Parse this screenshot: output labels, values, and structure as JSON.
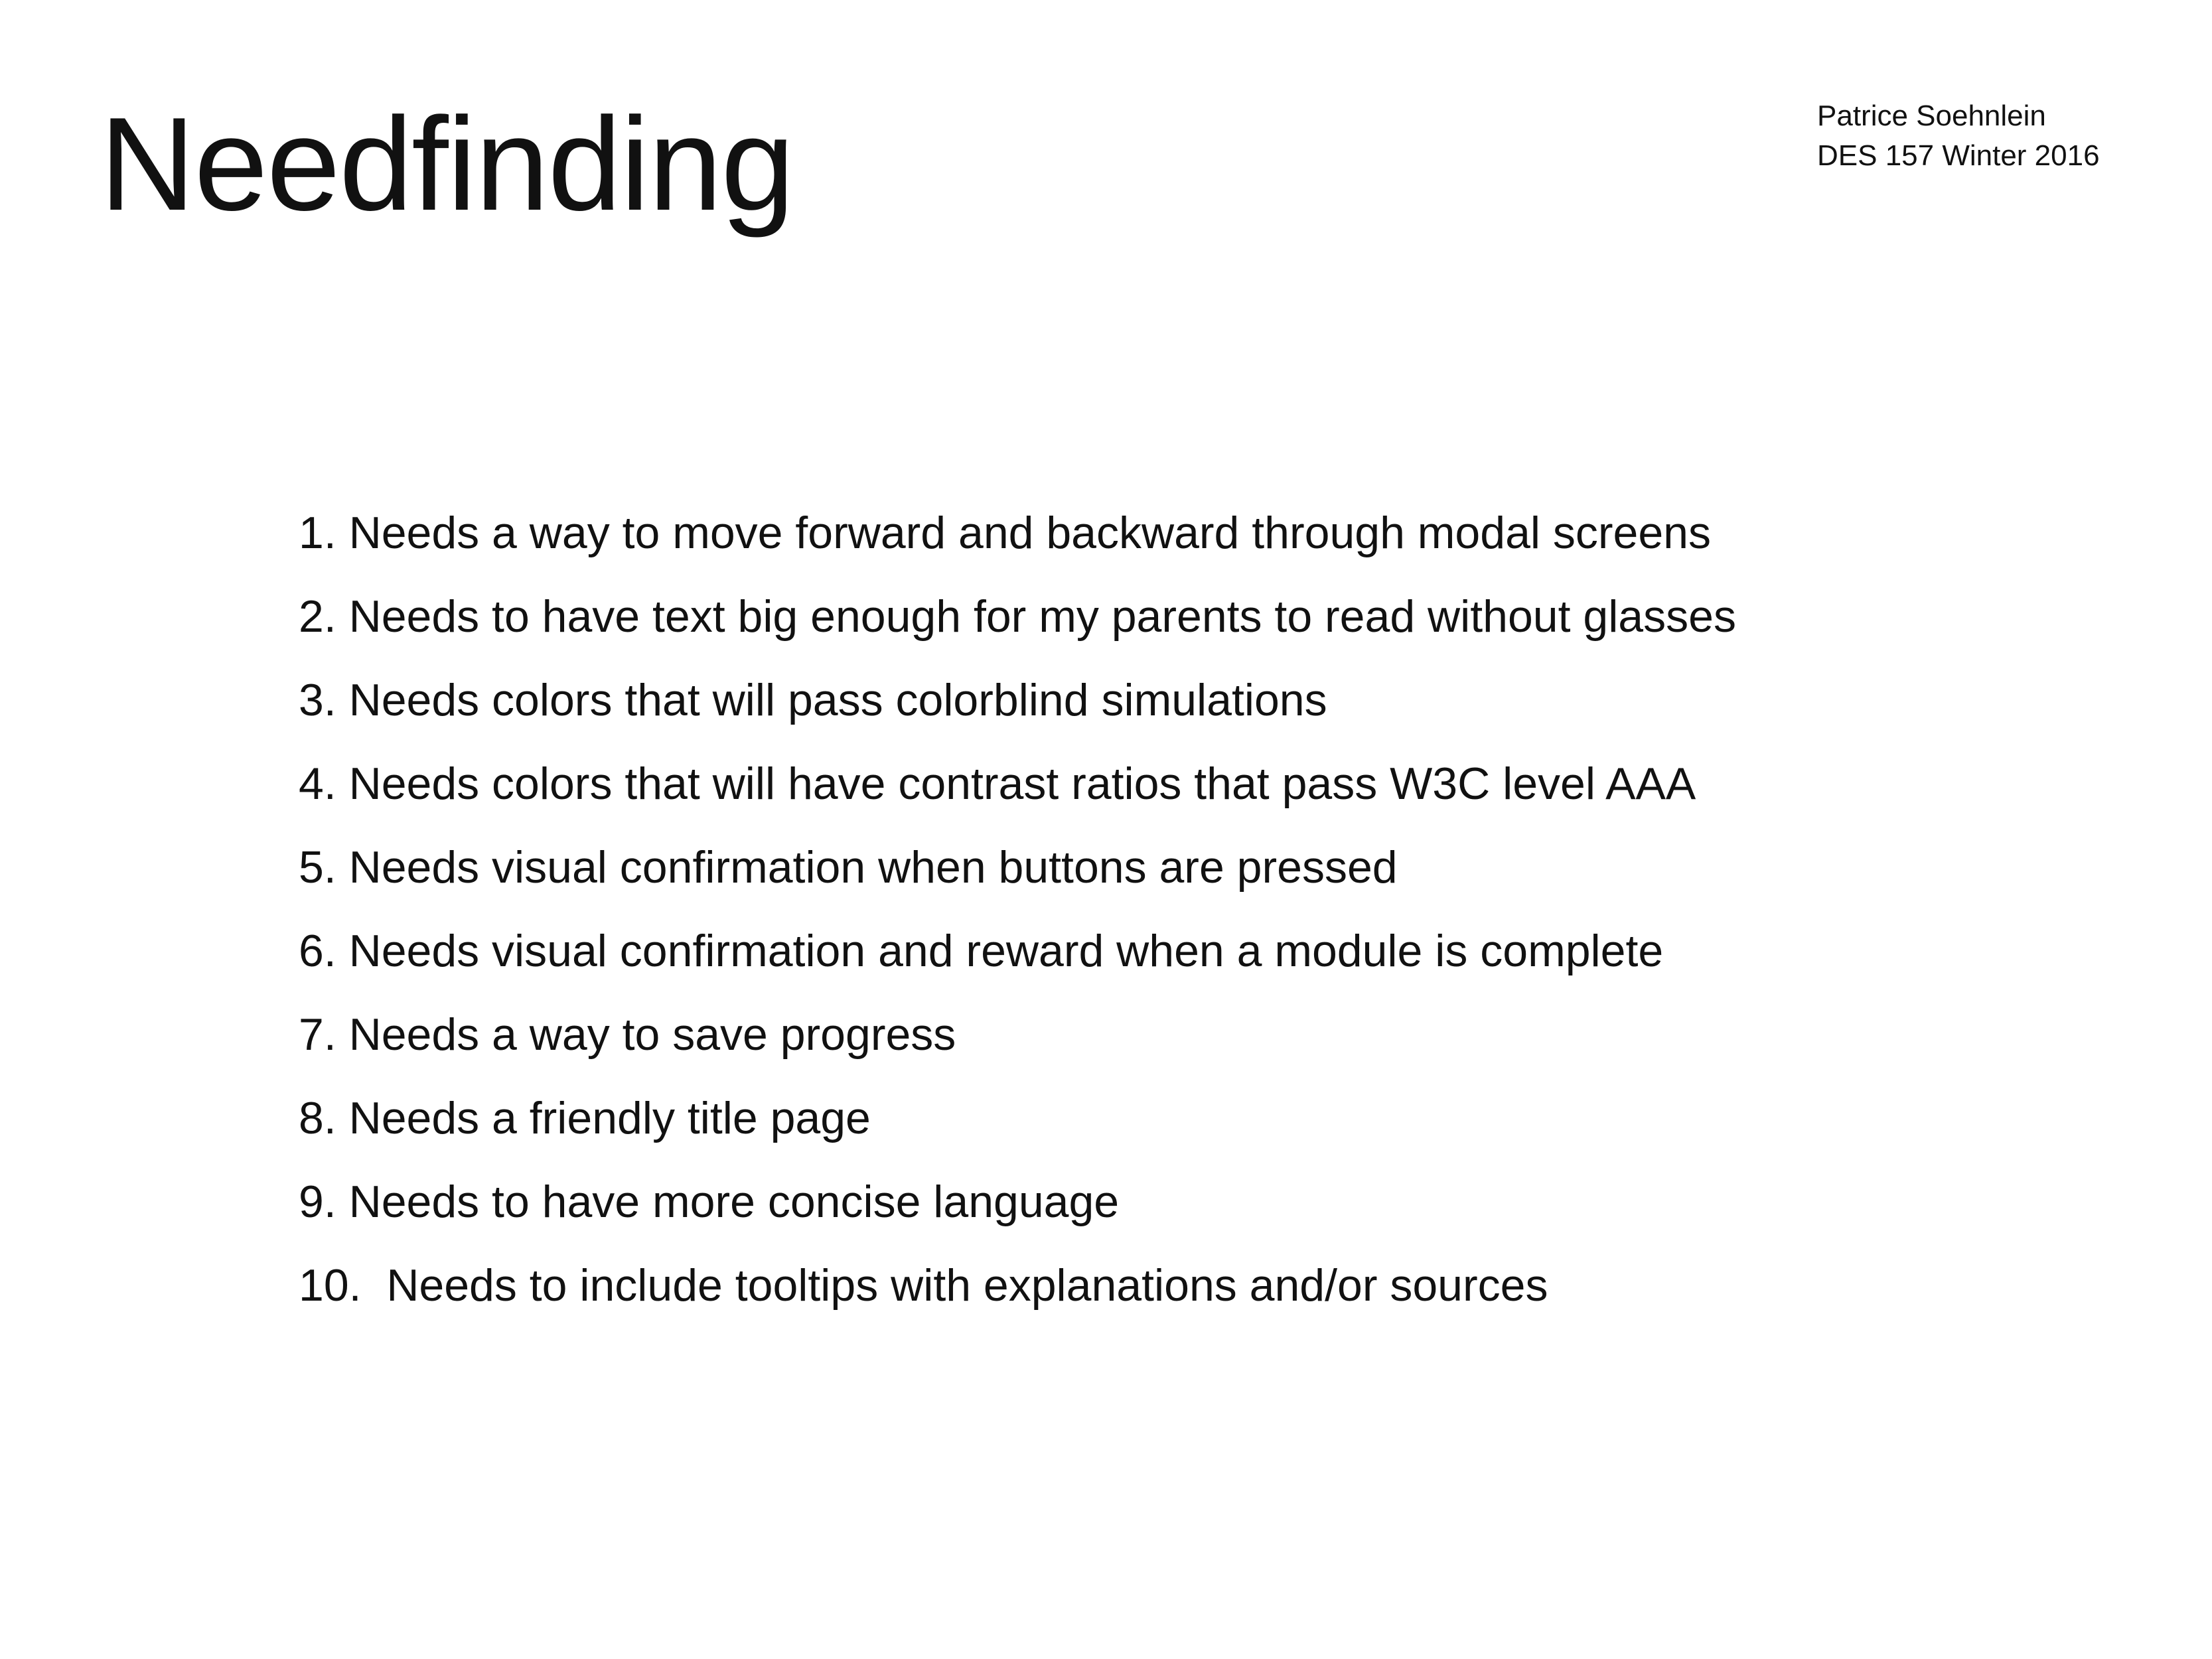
{
  "slide": {
    "title": "Needfinding",
    "author": {
      "name": "Patrice Soehnlein",
      "course": "DES 157 Winter 2016"
    },
    "needs": [
      "1. Needs a way to move forward and backward through modal screens",
      "2. Needs to have text big enough for my parents to read without glasses",
      "3. Needs colors that will pass colorblind simulations",
      "4. Needs colors that will have contrast ratios that pass W3C level AAA",
      "5. Needs visual confirmation when buttons are pressed",
      "6. Needs visual confirmation and reward when a module is complete",
      "7. Needs a way to save progress",
      "8. Needs a friendly title page",
      "9. Needs to have more concise language",
      "10.  Needs to include tooltips with explanations and/or sources"
    ]
  }
}
